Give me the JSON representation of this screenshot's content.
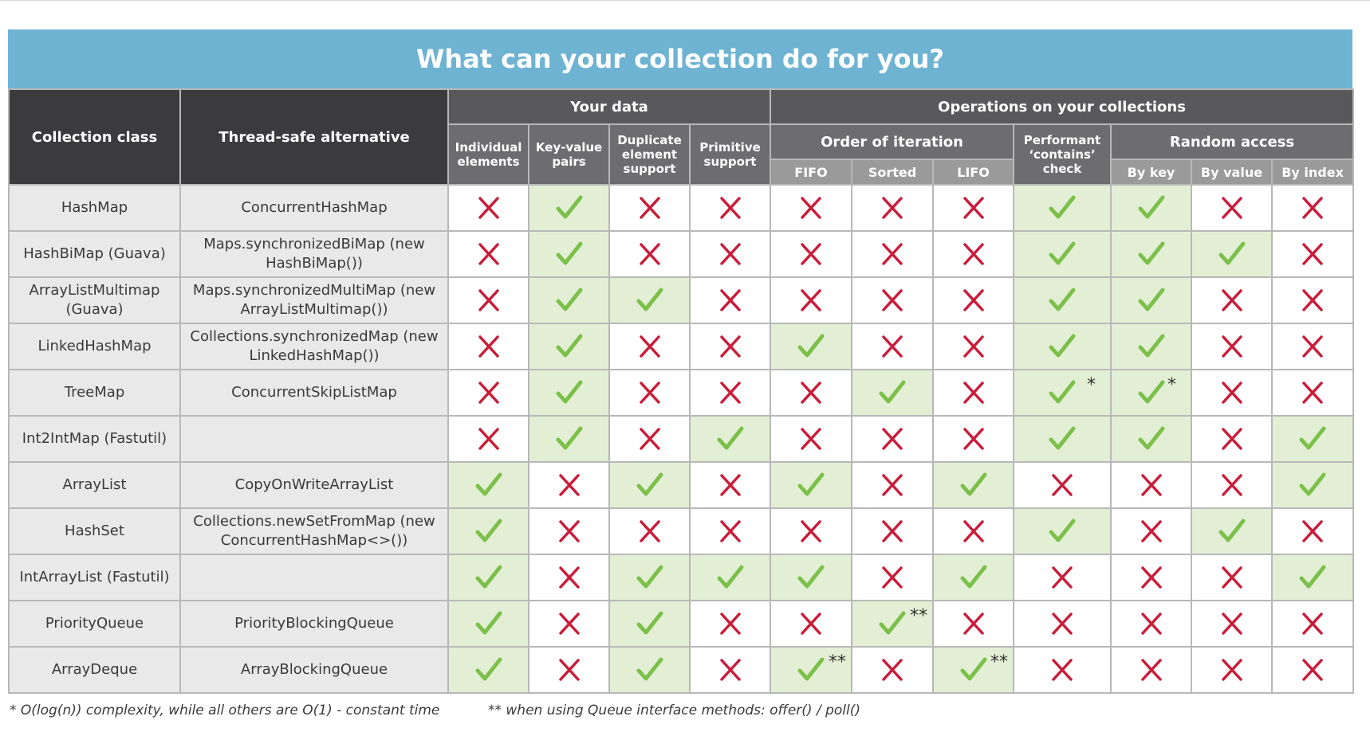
{
  "title": "What can your collection do for you?",
  "headers": {
    "collection_class": "Collection class",
    "thread_safe": "Thread-safe alternative",
    "your_data": "Your data",
    "operations": "Operations on your collections",
    "order_of_iteration": "Order of iteration",
    "performant_contains": "Performant ‘contains’ check",
    "random_access": "Random access",
    "columns": [
      "Individual elements",
      "Key-value pairs",
      "Duplicate element support",
      "Primitive support",
      "FIFO",
      "Sorted",
      "LIFO",
      "Performant ‘contains’ check",
      "By key",
      "By value",
      "By index"
    ]
  },
  "colors": {
    "check": "#7cc04b",
    "cross": "#c81d3a",
    "check_bg": "#e3efd5",
    "header_bg": "#6fb3d3"
  },
  "icons": {
    "yes": "check-mark-icon",
    "no": "cross-mark-icon"
  },
  "rows": [
    {
      "name": "HashMap",
      "alt": "ConcurrentHashMap",
      "cells": [
        false,
        true,
        false,
        false,
        false,
        false,
        false,
        true,
        true,
        false,
        false
      ],
      "notes": [
        "",
        "",
        "",
        "",
        "",
        "",
        "",
        "",
        "",
        "",
        ""
      ]
    },
    {
      "name": "HashBiMap (Guava)",
      "alt": "Maps.synchronizedBiMap (new HashBiMap())",
      "cells": [
        false,
        true,
        false,
        false,
        false,
        false,
        false,
        true,
        true,
        true,
        false
      ],
      "notes": [
        "",
        "",
        "",
        "",
        "",
        "",
        "",
        "",
        "",
        "",
        ""
      ]
    },
    {
      "name": "ArrayListMultimap (Guava)",
      "alt": "Maps.synchronizedMultiMap (new ArrayListMultimap())",
      "cells": [
        false,
        true,
        true,
        false,
        false,
        false,
        false,
        true,
        true,
        false,
        false
      ],
      "notes": [
        "",
        "",
        "",
        "",
        "",
        "",
        "",
        "",
        "",
        "",
        ""
      ]
    },
    {
      "name": "LinkedHashMap",
      "alt": "Collections.synchronizedMap (new LinkedHashMap())",
      "cells": [
        false,
        true,
        false,
        false,
        true,
        false,
        false,
        true,
        true,
        false,
        false
      ],
      "notes": [
        "",
        "",
        "",
        "",
        "",
        "",
        "",
        "",
        "",
        "",
        ""
      ]
    },
    {
      "name": "TreeMap",
      "alt": "ConcurrentSkipListMap",
      "cells": [
        false,
        true,
        false,
        false,
        false,
        true,
        false,
        true,
        true,
        false,
        false
      ],
      "notes": [
        "",
        "",
        "",
        "",
        "",
        "",
        "",
        "*",
        "*",
        "",
        ""
      ]
    },
    {
      "name": "Int2IntMap (Fastutil)",
      "alt": "",
      "cells": [
        false,
        true,
        false,
        true,
        false,
        false,
        false,
        true,
        true,
        false,
        true
      ],
      "notes": [
        "",
        "",
        "",
        "",
        "",
        "",
        "",
        "",
        "",
        "",
        ""
      ]
    },
    {
      "name": "ArrayList",
      "alt": "CopyOnWriteArrayList",
      "cells": [
        true,
        false,
        true,
        false,
        true,
        false,
        true,
        false,
        false,
        false,
        true
      ],
      "notes": [
        "",
        "",
        "",
        "",
        "",
        "",
        "",
        "",
        "",
        "",
        ""
      ]
    },
    {
      "name": "HashSet",
      "alt": "Collections.newSetFromMap (new ConcurrentHashMap<>())",
      "cells": [
        true,
        false,
        false,
        false,
        false,
        false,
        false,
        true,
        false,
        true,
        false
      ],
      "notes": [
        "",
        "",
        "",
        "",
        "",
        "",
        "",
        "",
        "",
        "",
        ""
      ]
    },
    {
      "name": "IntArrayList (Fastutil)",
      "alt": "",
      "cells": [
        true,
        false,
        true,
        true,
        true,
        false,
        true,
        false,
        false,
        false,
        true
      ],
      "notes": [
        "",
        "",
        "",
        "",
        "",
        "",
        "",
        "",
        "",
        "",
        ""
      ]
    },
    {
      "name": "PriorityQueue",
      "alt": "PriorityBlockingQueue",
      "cells": [
        true,
        false,
        true,
        false,
        false,
        true,
        false,
        false,
        false,
        false,
        false
      ],
      "notes": [
        "",
        "",
        "",
        "",
        "",
        "**",
        "",
        "",
        "",
        "",
        ""
      ]
    },
    {
      "name": "ArrayDeque",
      "alt": "ArrayBlockingQueue",
      "cells": [
        true,
        false,
        true,
        false,
        true,
        false,
        true,
        false,
        false,
        false,
        false
      ],
      "notes": [
        "",
        "",
        "",
        "",
        "**",
        "",
        "**",
        "",
        "",
        "",
        ""
      ]
    }
  ],
  "footnotes": {
    "single": "* O(log(n)) complexity, while all others are O(1) - constant time",
    "double": "** when using Queue interface methods: offer() / poll()"
  }
}
